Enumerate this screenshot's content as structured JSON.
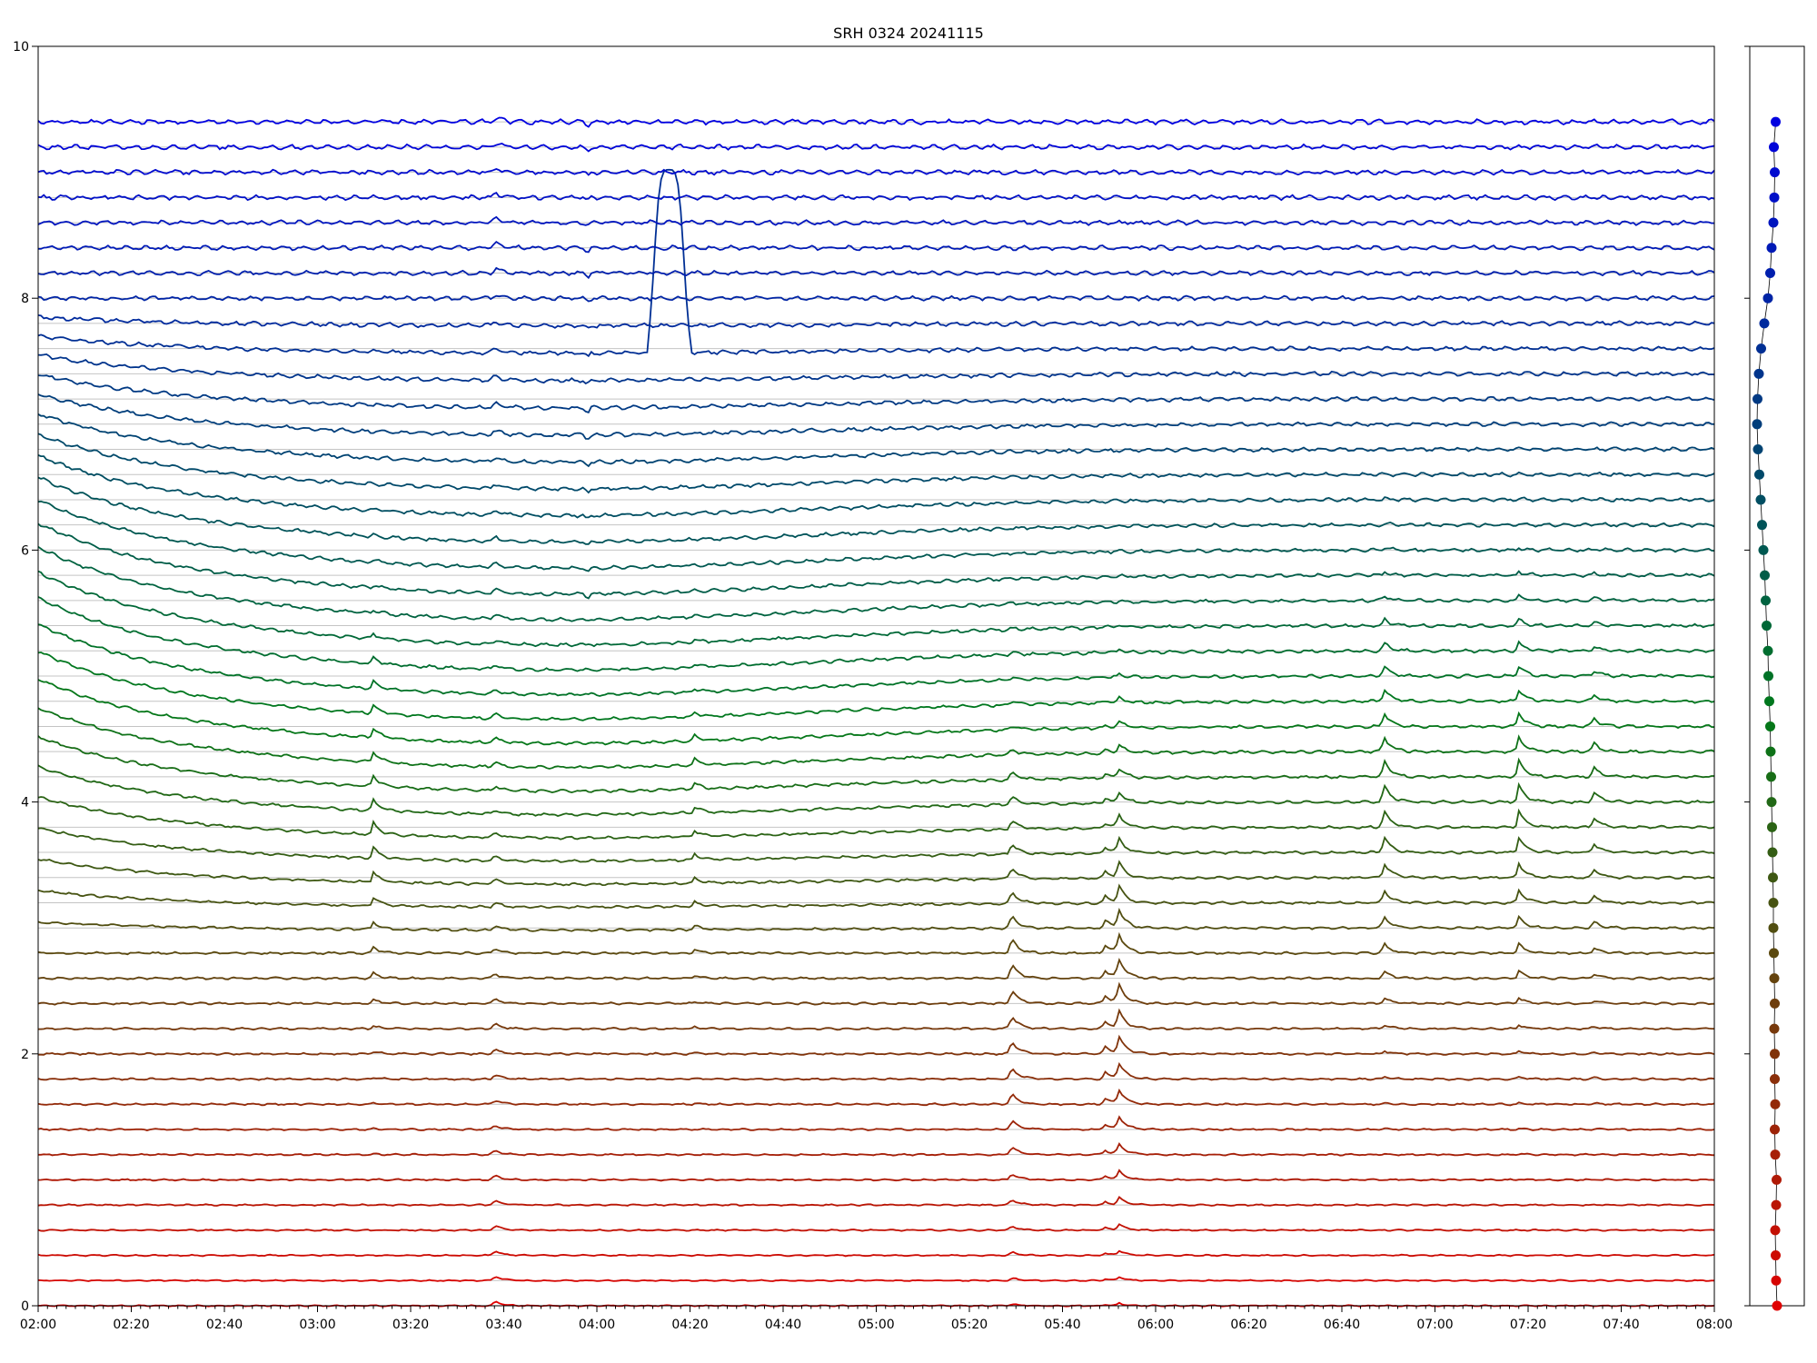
{
  "chart_data": {
    "type": "line",
    "title": "SRH 0324 20241115",
    "xlabel": "",
    "ylabel": "",
    "x_range": [
      "02:00",
      "08:00"
    ],
    "ylim": [
      0,
      10
    ],
    "x_tick_labels": [
      "02:00",
      "02:20",
      "02:40",
      "03:00",
      "03:20",
      "03:40",
      "04:00",
      "04:20",
      "04:40",
      "05:00",
      "05:20",
      "05:40",
      "06:00",
      "06:20",
      "06:40",
      "07:00",
      "07:20",
      "07:40",
      "08:00"
    ],
    "y_tick_labels": [
      "0",
      "2",
      "4",
      "6",
      "8",
      "10"
    ],
    "y_tick_values": [
      0,
      2,
      4,
      6,
      8,
      10
    ],
    "n_channels": 48,
    "channel_spacing": 0.2,
    "color_low": "#e00000",
    "color_mid": "#007a1a",
    "color_high": "#0000e0",
    "grid": "horizontal baselines at each channel offset",
    "legend": "none",
    "events": [
      {
        "time": "03:12",
        "amplitude": 0.09,
        "band": "mid"
      },
      {
        "time": "03:38",
        "amplitude": 0.04,
        "band": "all"
      },
      {
        "time": "04:21",
        "amplitude": 0.05,
        "band": "mid"
      },
      {
        "time": "05:29",
        "amplitude": 0.12,
        "band": "low-mid"
      },
      {
        "time": "05:49",
        "amplitude": 0.07,
        "band": "low-mid"
      },
      {
        "time": "05:52",
        "amplitude": 0.16,
        "band": "low-mid"
      },
      {
        "time": "06:49",
        "amplitude": 0.14,
        "band": "mid"
      },
      {
        "time": "07:18",
        "amplitude": 0.13,
        "band": "mid"
      },
      {
        "time": "07:34",
        "amplitude": 0.08,
        "band": "mid"
      }
    ],
    "artifact": {
      "time_start": "04:12",
      "time_end": "04:19",
      "peak": 9.02,
      "channel_index": 38
    },
    "side_panel": {
      "type": "scatter",
      "points_y": [
        0.0,
        0.2,
        0.4,
        0.6,
        0.8,
        1.0,
        1.2,
        1.4,
        1.6,
        1.8,
        2.0,
        2.2,
        2.4,
        2.6,
        2.8,
        3.0,
        3.2,
        3.4,
        3.6,
        3.8,
        4.0,
        4.2,
        4.4,
        4.6,
        4.8,
        5.0,
        5.2,
        5.4,
        5.6,
        5.8,
        6.0,
        6.2,
        6.4,
        6.6,
        6.8,
        7.0,
        7.2,
        7.4,
        7.6,
        7.8,
        8.0,
        8.2,
        8.4,
        8.6,
        8.8,
        9.0,
        9.2,
        9.4
      ],
      "points_x": [
        0.5,
        0.48,
        0.47,
        0.46,
        0.48,
        0.49,
        0.46,
        0.45,
        0.46,
        0.45,
        0.45,
        0.44,
        0.45,
        0.44,
        0.43,
        0.42,
        0.42,
        0.41,
        0.4,
        0.39,
        0.38,
        0.37,
        0.36,
        0.35,
        0.33,
        0.31,
        0.3,
        0.27,
        0.25,
        0.23,
        0.2,
        0.17,
        0.14,
        0.11,
        0.08,
        0.06,
        0.07,
        0.1,
        0.15,
        0.22,
        0.3,
        0.35,
        0.38,
        0.42,
        0.44,
        0.45,
        0.43,
        0.47
      ]
    }
  }
}
